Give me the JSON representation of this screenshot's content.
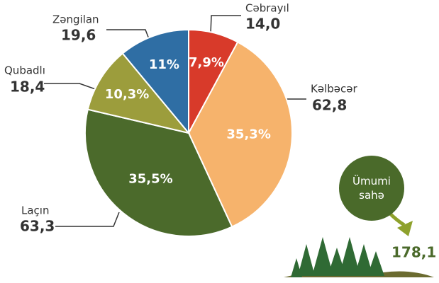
{
  "chart_data": {
    "type": "pie",
    "categories": [
      "Cəbrayıl",
      "Kəlbəcər",
      "Laçın",
      "Qubadlı",
      "Zəngilan"
    ],
    "values": [
      14.0,
      62.8,
      63.3,
      18.4,
      19.6
    ],
    "value_labels": [
      "14,0",
      "62,8",
      "63,3",
      "18,4",
      "19,6"
    ],
    "percents": [
      7.9,
      35.3,
      35.5,
      10.3,
      11
    ],
    "percent_labels": [
      "7,9%",
      "35,3%",
      "35,5%",
      "10,3%",
      "11%"
    ],
    "colors": [
      "#d83a2a",
      "#f6b36c",
      "#4b6a2b",
      "#9c9d3c",
      "#2f6ea4"
    ],
    "total": {
      "label": "Ümumi sahə",
      "value": 178.1,
      "value_label": "178,1"
    }
  }
}
